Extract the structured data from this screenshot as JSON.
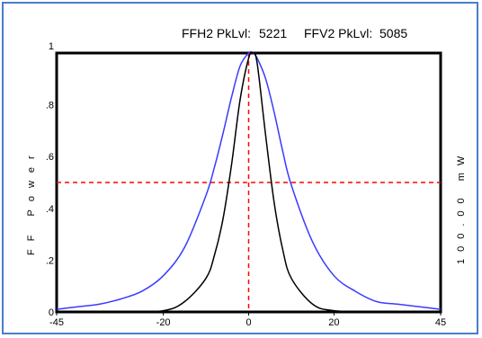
{
  "header": {
    "ffh2_label": "FFH2 PkLvl:",
    "ffh2_value": "5221",
    "ffv2_label": "FFV2 PkLvl:",
    "ffv2_value": "5085"
  },
  "chart_data": {
    "type": "line",
    "xlim": [
      -45,
      45
    ],
    "ylim": [
      0,
      1
    ],
    "x_ticks": [
      "-45",
      "-20",
      "0",
      "20",
      "45"
    ],
    "y_ticks": [
      "0",
      ".2",
      ".4",
      ".6",
      ".8",
      "1"
    ],
    "ylabel_left": "FF Power",
    "ylabel_right": "100.00 mW",
    "reference_lines": {
      "horizontal_y": 0.5,
      "vertical_x": 0
    },
    "colors": {
      "series_blue": "#3a3aff",
      "series_black": "#000000",
      "reference": "#ff0000",
      "frame": "#4a7ec8"
    },
    "series": [
      {
        "color": "#3a3aff",
        "x": [
          -45,
          -40,
          -35,
          -30,
          -25,
          -20,
          -15,
          -10,
          -8,
          -6,
          -4,
          -2,
          0,
          1,
          2,
          4,
          6,
          8,
          10,
          15,
          20,
          25,
          30,
          35,
          40,
          45
        ],
        "y": [
          0.01,
          0.02,
          0.03,
          0.05,
          0.08,
          0.14,
          0.25,
          0.45,
          0.56,
          0.69,
          0.83,
          0.95,
          1.0,
          1.0,
          0.98,
          0.9,
          0.77,
          0.62,
          0.49,
          0.27,
          0.14,
          0.08,
          0.04,
          0.03,
          0.02,
          0.01
        ]
      },
      {
        "color": "#000000",
        "x": [
          -45,
          -30,
          -20,
          -15,
          -10,
          -8,
          -6,
          -4,
          -2,
          0,
          1,
          2,
          4,
          6,
          8,
          10,
          15,
          20,
          30,
          45
        ],
        "y": [
          0.0,
          0.0,
          0.005,
          0.04,
          0.13,
          0.22,
          0.36,
          0.57,
          0.82,
          0.98,
          1.0,
          0.96,
          0.68,
          0.42,
          0.24,
          0.13,
          0.03,
          0.005,
          0.0,
          0.0
        ]
      }
    ]
  }
}
